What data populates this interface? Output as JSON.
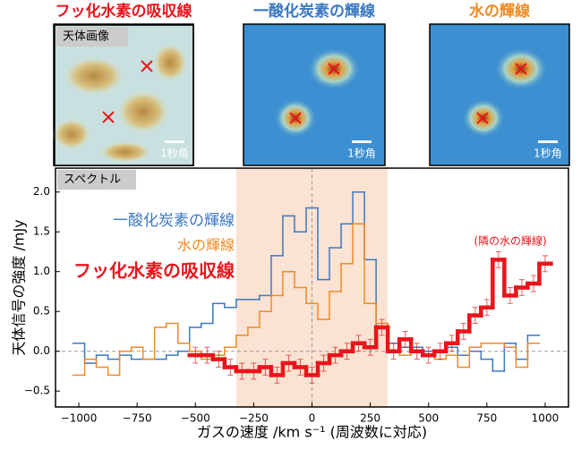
{
  "panels": [
    {
      "title": "フッ化水素の吸収線",
      "color": "#e8151b",
      "label": "天体画像",
      "scale": "1秒角"
    },
    {
      "title": "一酸化炭素の輝線",
      "color": "#3a78c0",
      "scale": "1秒角"
    },
    {
      "title": "水の輝線",
      "color": "#f08a24",
      "scale": "1秒角"
    }
  ],
  "chart_data": {
    "type": "step",
    "panel_label": "スペクトル",
    "x_label": "ガスの速度  /km s⁻¹ (周波数に対応)",
    "y_label": "天体信号の強度  /mJy",
    "annotation": "(隣の水の輝線)",
    "legend": "upper left",
    "xlim": [
      -1100,
      1100
    ],
    "ylim": [
      -0.7,
      2.3
    ],
    "xticks": [
      {
        "value": -1000,
        "label": "−1000"
      },
      {
        "value": -750,
        "label": "−750"
      },
      {
        "value": -500,
        "label": "−500"
      },
      {
        "value": -250,
        "label": "−250"
      },
      0,
      250,
      500,
      750,
      1000
    ],
    "yticks": [
      {
        "value": -0.5,
        "label": "−0.5"
      },
      {
        "value": 0,
        "label": "0.0"
      },
      0.5,
      {
        "value": 1,
        "label": "1.0"
      },
      1.5,
      {
        "value": 2,
        "label": "2.0"
      }
    ],
    "highlight_range": [
      -325,
      325
    ],
    "vlines": [
      0
    ],
    "hlines": [
      0
    ],
    "x": [
      -1000,
      -950,
      -900,
      -850,
      -800,
      -750,
      -700,
      -650,
      -600,
      -550,
      -500,
      -450,
      -400,
      -350,
      -300,
      -250,
      -200,
      -150,
      -100,
      -50,
      0,
      50,
      100,
      150,
      200,
      250,
      300,
      350,
      400,
      450,
      500,
      550,
      600,
      650,
      700,
      750,
      800,
      850,
      900,
      950,
      1000
    ],
    "series": [
      {
        "name": "一酸化炭素の輝線",
        "color": "#3a78c0",
        "width": 1.5,
        "values": [
          0.1,
          -0.15,
          -0.05,
          -0.1,
          -0.05,
          -0.1,
          -0.1,
          -0.1,
          -0.05,
          0.0,
          0.3,
          0.35,
          0.6,
          0.55,
          0.65,
          0.65,
          0.7,
          1.2,
          1.7,
          1.5,
          1.8,
          0.9,
          1.3,
          1.6,
          2.0,
          1.15,
          0.3,
          0.1,
          0.05,
          0.05,
          0.0,
          0.0,
          0.05,
          -0.05,
          0.0,
          -0.1,
          -0.25,
          0.1,
          -0.1,
          0.2,
          null
        ]
      },
      {
        "name": "水の輝線",
        "color": "#f08a24",
        "width": 1.5,
        "values": [
          -0.3,
          -0.1,
          -0.2,
          -0.3,
          0.0,
          0.05,
          -0.1,
          0.3,
          0.35,
          0.1,
          0.0,
          -0.1,
          -0.05,
          0.05,
          0.2,
          0.3,
          0.5,
          0.7,
          1.0,
          0.8,
          0.6,
          0.4,
          0.75,
          1.1,
          1.6,
          0.6,
          0.35,
          0.0,
          -0.05,
          0.0,
          -0.05,
          -0.1,
          -0.05,
          -0.2,
          0.05,
          0.1,
          0.1,
          0.05,
          -0.2,
          0.1,
          null
        ]
      },
      {
        "name": "フッ化水素の吸収線",
        "color": "#e8151b",
        "width": 4.5,
        "values": [
          null,
          null,
          null,
          null,
          null,
          null,
          null,
          null,
          null,
          null,
          -0.05,
          -0.05,
          -0.1,
          -0.2,
          -0.25,
          -0.25,
          -0.2,
          -0.3,
          -0.15,
          -0.2,
          -0.3,
          -0.15,
          -0.05,
          0.0,
          0.1,
          0.05,
          0.3,
          0.0,
          0.15,
          0.0,
          -0.05,
          0.0,
          0.1,
          0.25,
          0.45,
          0.55,
          1.15,
          0.7,
          0.8,
          0.85,
          1.1
        ],
        "errors": [
          null,
          null,
          null,
          null,
          null,
          null,
          null,
          null,
          null,
          null,
          0.1,
          0.1,
          0.1,
          0.1,
          0.1,
          0.1,
          0.1,
          0.1,
          0.1,
          0.1,
          0.1,
          0.1,
          0.1,
          0.1,
          0.1,
          0.1,
          0.1,
          0.1,
          0.1,
          0.1,
          0.1,
          0.1,
          0.1,
          0.1,
          0.1,
          0.1,
          0.1,
          0.1,
          0.1,
          0.1,
          0.1
        ]
      }
    ]
  }
}
